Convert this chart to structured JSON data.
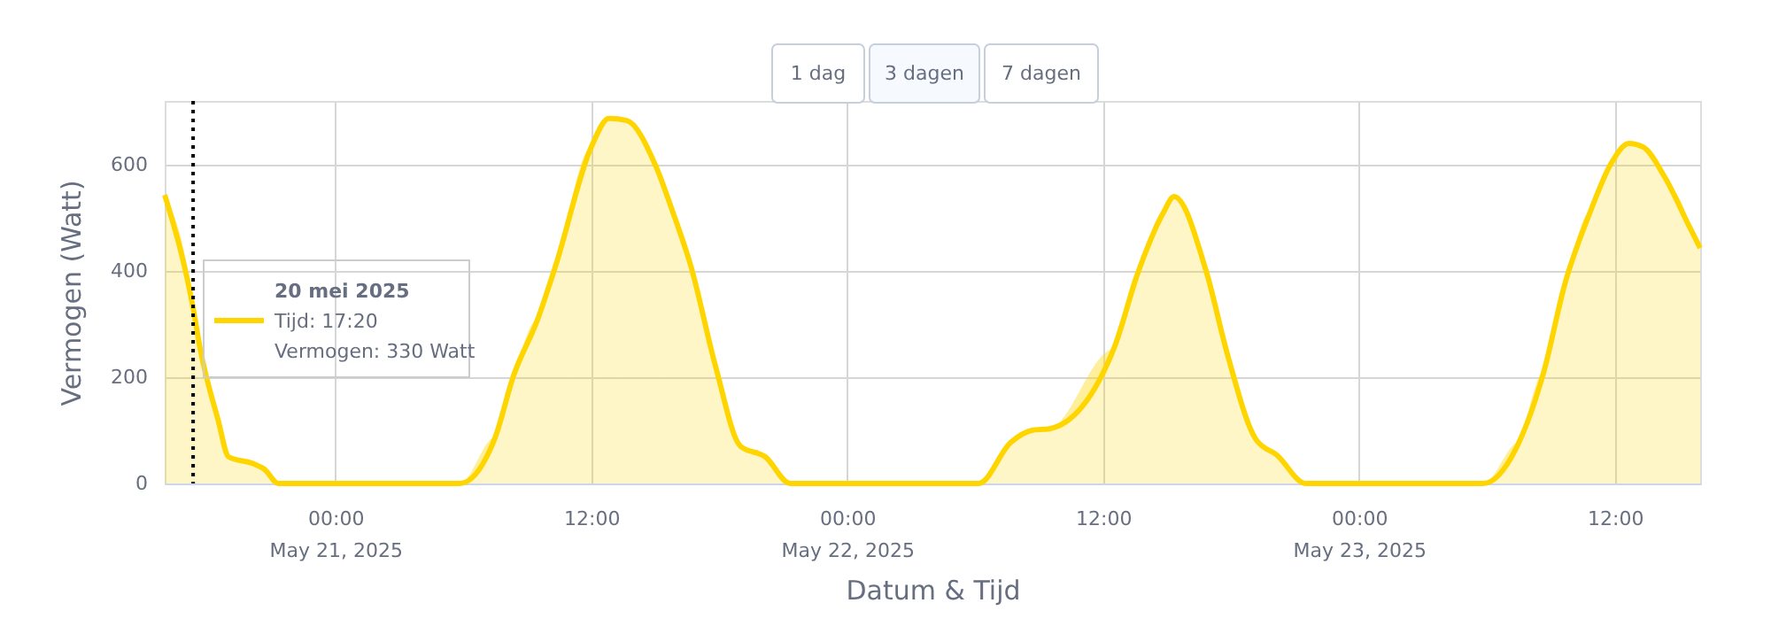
{
  "chart_data": {
    "type": "area",
    "xlabel": "Datum & Tijd",
    "ylabel": "Vermogen (Watt)",
    "x": [
      "2025-05-20T16:00",
      "2025-05-20T17:20",
      "2025-05-20T17:40",
      "2025-05-20T18:30",
      "2025-05-20T19:00",
      "2025-05-20T20:10",
      "2025-05-20T20:40",
      "2025-05-20T21:20",
      "2025-05-21T05:50",
      "2025-05-21T07:30",
      "2025-05-21T08:20",
      "2025-05-21T09:30",
      "2025-05-21T10:20",
      "2025-05-21T12:00",
      "2025-05-21T12:50",
      "2025-05-21T13:40",
      "2025-05-21T15:00",
      "2025-05-21T15:50",
      "2025-05-21T16:40",
      "2025-05-21T17:50",
      "2025-05-21T19:00",
      "2025-05-21T20:10",
      "2025-05-21T21:20",
      "2025-05-22T06:10",
      "2025-05-22T07:40",
      "2025-05-22T08:40",
      "2025-05-22T09:30",
      "2025-05-22T12:30",
      "2025-05-22T13:40",
      "2025-05-22T14:50",
      "2025-05-22T15:20",
      "2025-05-22T16:50",
      "2025-05-22T17:50",
      "2025-05-22T19:10",
      "2025-05-22T20:10",
      "2025-05-22T21:30",
      "2025-05-23T05:50",
      "2025-05-23T07:30",
      "2025-05-23T08:40",
      "2025-05-23T09:40",
      "2025-05-23T10:50",
      "2025-05-23T11:50",
      "2025-05-23T12:40",
      "2025-05-23T13:20",
      "2025-05-23T14:20",
      "2025-05-23T15:30",
      "2025-05-23T16:00"
    ],
    "series": [
      {
        "color": "#ffd500",
        "values": [
          543,
          330,
          253,
          120,
          50,
          37,
          27,
          0,
          0,
          87,
          200,
          310,
          410,
          633,
          687,
          683,
          600,
          510,
          410,
          220,
          70,
          50,
          0,
          0,
          77,
          100,
          103,
          253,
          400,
          510,
          540,
          400,
          243,
          83,
          53,
          0,
          0,
          77,
          210,
          377,
          510,
          603,
          640,
          633,
          577,
          483,
          443
        ]
      }
    ],
    "xlim": [
      "2025-05-20T16:00",
      "2025-05-23T16:00"
    ],
    "xticks": [
      {
        "value": "2025-05-21T00:00",
        "label": "00:00\nMay 21, 2025"
      },
      {
        "value": "2025-05-21T12:00",
        "label": "12:00"
      },
      {
        "value": "2025-05-22T00:00",
        "label": "00:00\nMay 22, 2025"
      },
      {
        "value": "2025-05-22T12:00",
        "label": "12:00"
      },
      {
        "value": "2025-05-23T00:00",
        "label": "00:00\nMay 23, 2025"
      },
      {
        "value": "2025-05-23T12:00",
        "label": "12:00"
      }
    ],
    "ylim": [
      0,
      720
    ],
    "yticks": [
      0,
      200,
      400,
      600
    ],
    "grid": true,
    "ref_lines": [
      {
        "axis": "x",
        "value": "2025-05-20T17:20",
        "color": "#000000",
        "line_style": "dotted"
      }
    ],
    "annotations": [
      "20 mei 2025\nTijd: 17:20\nVermogen: 330 Watt",
      "1 dag",
      "3 dagen",
      "7 dagen"
    ]
  }
}
